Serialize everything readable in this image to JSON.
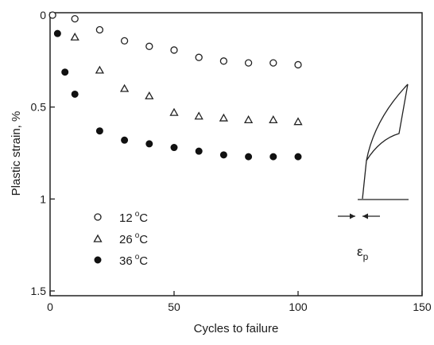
{
  "chart_data": {
    "type": "scatter",
    "xlabel": "Cycles to failure",
    "ylabel": "Plastic strain, %",
    "xlim": [
      0,
      150
    ],
    "ylim": [
      0,
      1.5
    ],
    "y_inverted": true,
    "grid": false,
    "legend_position": "bottom-left",
    "x_ticks": [
      "0",
      "50",
      "100",
      "150"
    ],
    "x_tick_values": [
      0,
      50,
      100,
      150
    ],
    "y_ticks": [
      "0",
      "0.5",
      "1",
      "1.5"
    ],
    "y_tick_values": [
      0,
      0.5,
      1,
      1.5
    ],
    "series": [
      {
        "name": "12 °C",
        "legend_text": "12",
        "marker": "open-circle",
        "x": [
          1,
          10,
          20,
          30,
          40,
          50,
          60,
          70,
          80,
          90,
          100
        ],
        "y": [
          0.0,
          0.02,
          0.08,
          0.14,
          0.17,
          0.19,
          0.23,
          0.25,
          0.26,
          0.26,
          0.27
        ]
      },
      {
        "name": "26 °C",
        "legend_text": "26",
        "marker": "open-triangle",
        "x": [
          10,
          20,
          30,
          40,
          50,
          60,
          70,
          80,
          90,
          100
        ],
        "y": [
          0.12,
          0.3,
          0.4,
          0.44,
          0.53,
          0.55,
          0.56,
          0.57,
          0.57,
          0.58
        ]
      },
      {
        "name": "36 °C",
        "legend_text": "36",
        "marker": "filled-circle",
        "x": [
          3,
          6,
          10,
          20,
          30,
          40,
          50,
          60,
          70,
          80,
          90,
          100
        ],
        "y": [
          0.1,
          0.31,
          0.43,
          0.63,
          0.68,
          0.7,
          0.72,
          0.74,
          0.76,
          0.77,
          0.77,
          0.77
        ]
      }
    ],
    "legend_units": {
      "degree": "o",
      "unit": "C"
    },
    "inset": {
      "label_main": "ε",
      "label_sub": "p"
    }
  }
}
